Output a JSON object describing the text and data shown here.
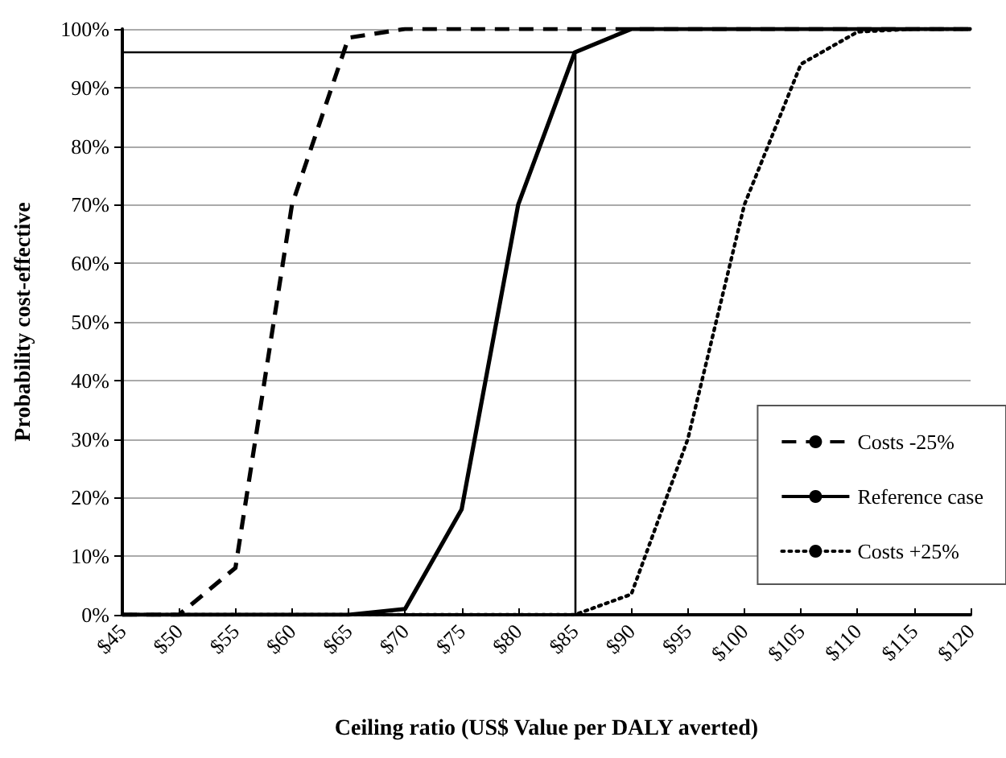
{
  "chart_data": {
    "type": "line",
    "xlabel": "Ceiling ratio (US$ Value per DALY averted)",
    "ylabel": "Probability cost-effective",
    "categories": [
      "$45",
      "$50",
      "$55",
      "$60",
      "$65",
      "$70",
      "$75",
      "$80",
      "$85",
      "$90",
      "$95",
      "$100",
      "$105",
      "$110",
      "$115",
      "$120"
    ],
    "series": [
      {
        "name": "Costs -25%",
        "color": "#000000",
        "line_style": "dashed",
        "values": [
          0,
          0,
          8,
          70,
          98.5,
          100,
          100,
          100,
          100,
          100,
          100,
          100,
          100,
          100,
          100,
          100
        ]
      },
      {
        "name": "Reference case",
        "color": "#000000",
        "line_style": "solid",
        "values": [
          0,
          0,
          0,
          0,
          0,
          1,
          18,
          70,
          96,
          100,
          100,
          100,
          100,
          100,
          100,
          100
        ]
      },
      {
        "name": "Costs +25%",
        "color": "#000000",
        "line_style": "dotted",
        "values": [
          0,
          0,
          0,
          0,
          0,
          0,
          0,
          0,
          0,
          3.5,
          30,
          70,
          94,
          99.5,
          100,
          100
        ]
      }
    ],
    "ylim": [
      0,
      100
    ],
    "yticks": [
      {
        "value": 0,
        "label": "0%"
      },
      {
        "value": 10,
        "label": "10%"
      },
      {
        "value": 20,
        "label": "20%"
      },
      {
        "value": 30,
        "label": "30%"
      },
      {
        "value": 40,
        "label": "40%"
      },
      {
        "value": 50,
        "label": "50%"
      },
      {
        "value": 60,
        "label": "60%"
      },
      {
        "value": 70,
        "label": "70%"
      },
      {
        "value": 80,
        "label": "80%"
      },
      {
        "value": 90,
        "label": "90%"
      },
      {
        "value": 100,
        "label": "100%"
      }
    ],
    "ref_lines": [
      {
        "axis": "x",
        "value": "$85",
        "color": "#000000"
      },
      {
        "axis": "y",
        "value": 96,
        "color": "#000000"
      }
    ],
    "grid": "y",
    "legend": "bottom right",
    "marker": "none"
  }
}
